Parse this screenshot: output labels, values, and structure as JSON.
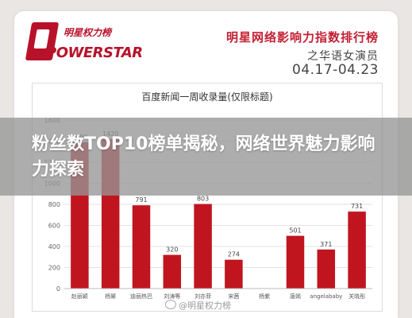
{
  "logo": {
    "cn": "明星权力榜",
    "en": "POWERSTAR"
  },
  "header": {
    "title": "明星网络影响力指数排行榜",
    "subtitle": "之华语女演员",
    "date": "04.17-04.23"
  },
  "chart_data": {
    "type": "bar",
    "title": "百度新闻一周收录量(仅限标题)",
    "categories": [
      "赵丽颖",
      "杨幂",
      "迪丽热巴",
      "刘涛等",
      "刘亦菲",
      "宋茜",
      "杨紫",
      "唐嫣",
      "angelababy",
      "关晓彤"
    ],
    "values": [
      1390,
      1420,
      791,
      320,
      803,
      274,
      0,
      501,
      371,
      731
    ],
    "value_labels": [
      "1390",
      "1420",
      "791",
      "320",
      "803",
      "274",
      "",
      "501",
      "371",
      "731"
    ],
    "ylim": [
      0,
      1600
    ],
    "yticks": [
      0,
      200,
      400,
      600,
      800,
      1000,
      1200,
      1400,
      1600
    ],
    "grid": true,
    "bar_color": "#c0151f"
  },
  "banner": {
    "text": "粉丝数TOP10榜单揭秘，网络世界魅力影响力探索"
  },
  "watermark": {
    "text": "@明星权力榜"
  }
}
